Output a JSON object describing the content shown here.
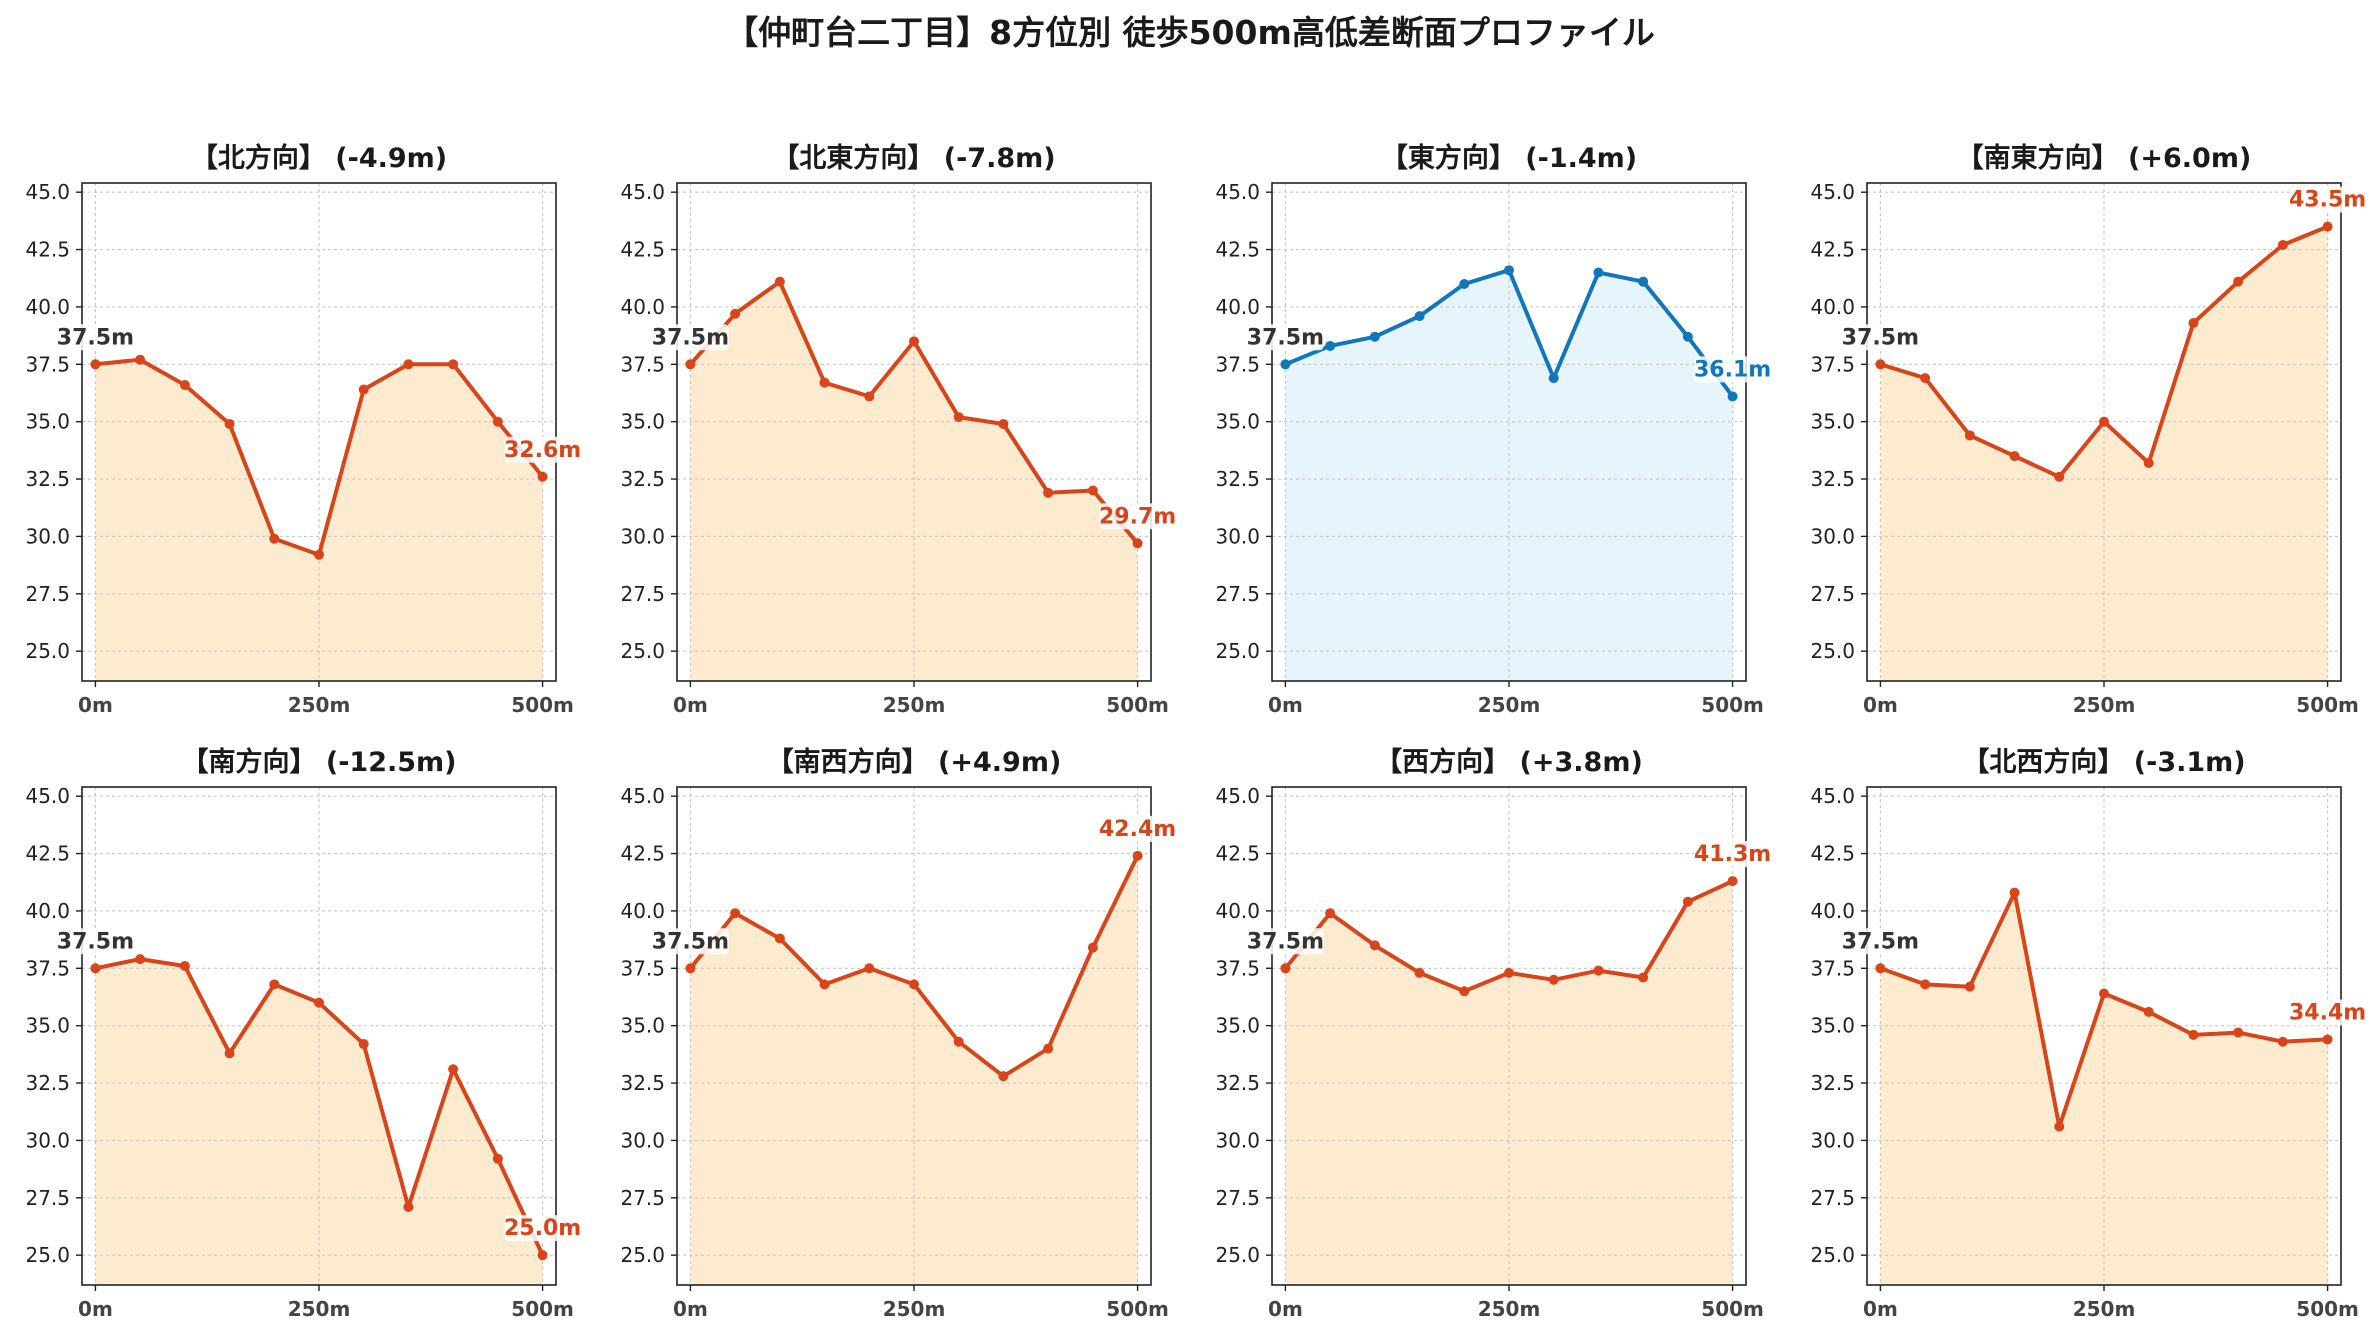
{
  "figure": {
    "title": "【仲町台二丁目】8方位別 徒歩500m高低差断面プロファイル"
  },
  "colors": {
    "down_line": "#d9451a",
    "down_fill": "#fdebd0",
    "flat_line": "#1177bb",
    "flat_fill": "#e6f4fb",
    "start_label": "#333333",
    "grid": "#c8c8c8"
  },
  "chart_data": [
    {
      "type": "area",
      "title": "【北方向】 (-4.9m)",
      "x": [
        0,
        50,
        100,
        150,
        200,
        250,
        300,
        350,
        400,
        450,
        500
      ],
      "y": [
        37.5,
        37.7,
        36.6,
        34.9,
        29.9,
        29.2,
        36.4,
        37.5,
        37.5,
        35.0,
        32.6
      ],
      "xticks": [
        "0m",
        "250m",
        "500m"
      ],
      "yticks": [
        "25.0",
        "27.5",
        "30.0",
        "32.5",
        "35.0",
        "37.5",
        "40.0",
        "42.5",
        "45.0"
      ],
      "start_label": "37.5m",
      "end_label": "32.6m",
      "color_scheme": "orange",
      "xlim": [
        -15,
        515
      ],
      "ylim": [
        23.7,
        45.4
      ],
      "grid": true
    },
    {
      "type": "area",
      "title": "【北東方向】 (-7.8m)",
      "x": [
        0,
        50,
        100,
        150,
        200,
        250,
        300,
        350,
        400,
        450,
        500
      ],
      "y": [
        37.5,
        39.7,
        41.1,
        36.7,
        36.1,
        38.5,
        35.2,
        34.9,
        31.9,
        32.0,
        29.7
      ],
      "xticks": [
        "0m",
        "250m",
        "500m"
      ],
      "yticks": [
        "25.0",
        "27.5",
        "30.0",
        "32.5",
        "35.0",
        "37.5",
        "40.0",
        "42.5",
        "45.0"
      ],
      "start_label": "37.5m",
      "end_label": "29.7m",
      "color_scheme": "orange",
      "xlim": [
        -15,
        515
      ],
      "ylim": [
        23.7,
        45.4
      ],
      "grid": true
    },
    {
      "type": "area",
      "title": "【東方向】 (-1.4m)",
      "x": [
        0,
        50,
        100,
        150,
        200,
        250,
        300,
        350,
        400,
        450,
        500
      ],
      "y": [
        37.5,
        38.3,
        38.7,
        39.6,
        41.0,
        41.6,
        36.9,
        41.5,
        41.1,
        38.7,
        36.1
      ],
      "xticks": [
        "0m",
        "250m",
        "500m"
      ],
      "yticks": [
        "25.0",
        "27.5",
        "30.0",
        "32.5",
        "35.0",
        "37.5",
        "40.0",
        "42.5",
        "45.0"
      ],
      "start_label": "37.5m",
      "end_label": "36.1m",
      "color_scheme": "blue",
      "xlim": [
        -15,
        515
      ],
      "ylim": [
        23.7,
        45.4
      ],
      "grid": true
    },
    {
      "type": "area",
      "title": "【南東方向】 (+6.0m)",
      "x": [
        0,
        50,
        100,
        150,
        200,
        250,
        300,
        350,
        400,
        450,
        500
      ],
      "y": [
        37.5,
        36.9,
        34.4,
        33.5,
        32.6,
        35.0,
        33.2,
        39.3,
        41.1,
        42.7,
        43.5
      ],
      "xticks": [
        "0m",
        "250m",
        "500m"
      ],
      "yticks": [
        "25.0",
        "27.5",
        "30.0",
        "32.5",
        "35.0",
        "37.5",
        "40.0",
        "42.5",
        "45.0"
      ],
      "start_label": "37.5m",
      "end_label": "43.5m",
      "color_scheme": "orange",
      "xlim": [
        -15,
        515
      ],
      "ylim": [
        23.7,
        45.4
      ],
      "grid": true
    },
    {
      "type": "area",
      "title": "【南方向】 (-12.5m)",
      "x": [
        0,
        50,
        100,
        150,
        200,
        250,
        300,
        350,
        400,
        450,
        500
      ],
      "y": [
        37.5,
        37.9,
        37.6,
        33.8,
        36.8,
        36.0,
        34.2,
        27.1,
        33.1,
        29.2,
        25.0
      ],
      "xticks": [
        "0m",
        "250m",
        "500m"
      ],
      "yticks": [
        "25.0",
        "27.5",
        "30.0",
        "32.5",
        "35.0",
        "37.5",
        "40.0",
        "42.5",
        "45.0"
      ],
      "start_label": "37.5m",
      "end_label": "25.0m",
      "color_scheme": "orange",
      "xlim": [
        -15,
        515
      ],
      "ylim": [
        23.7,
        45.4
      ],
      "grid": true
    },
    {
      "type": "area",
      "title": "【南西方向】 (+4.9m)",
      "x": [
        0,
        50,
        100,
        150,
        200,
        250,
        300,
        350,
        400,
        450,
        500
      ],
      "y": [
        37.5,
        39.9,
        38.8,
        36.8,
        37.5,
        36.8,
        34.3,
        32.8,
        34.0,
        38.4,
        42.4
      ],
      "xticks": [
        "0m",
        "250m",
        "500m"
      ],
      "yticks": [
        "25.0",
        "27.5",
        "30.0",
        "32.5",
        "35.0",
        "37.5",
        "40.0",
        "42.5",
        "45.0"
      ],
      "start_label": "37.5m",
      "end_label": "42.4m",
      "color_scheme": "orange",
      "xlim": [
        -15,
        515
      ],
      "ylim": [
        23.7,
        45.4
      ],
      "grid": true
    },
    {
      "type": "area",
      "title": "【西方向】 (+3.8m)",
      "x": [
        0,
        50,
        100,
        150,
        200,
        250,
        300,
        350,
        400,
        450,
        500
      ],
      "y": [
        37.5,
        39.9,
        38.5,
        37.3,
        36.5,
        37.3,
        37.0,
        37.4,
        37.1,
        40.4,
        41.3
      ],
      "xticks": [
        "0m",
        "250m",
        "500m"
      ],
      "yticks": [
        "25.0",
        "27.5",
        "30.0",
        "32.5",
        "35.0",
        "37.5",
        "40.0",
        "42.5",
        "45.0"
      ],
      "start_label": "37.5m",
      "end_label": "41.3m",
      "color_scheme": "orange",
      "xlim": [
        -15,
        515
      ],
      "ylim": [
        23.7,
        45.4
      ],
      "grid": true
    },
    {
      "type": "area",
      "title": "【北西方向】 (-3.1m)",
      "x": [
        0,
        50,
        100,
        150,
        200,
        250,
        300,
        350,
        400,
        450,
        500
      ],
      "y": [
        37.5,
        36.8,
        36.7,
        40.8,
        30.6,
        36.4,
        35.6,
        34.6,
        34.7,
        34.3,
        34.4
      ],
      "xticks": [
        "0m",
        "250m",
        "500m"
      ],
      "yticks": [
        "25.0",
        "27.5",
        "30.0",
        "32.5",
        "35.0",
        "37.5",
        "40.0",
        "42.5",
        "45.0"
      ],
      "start_label": "37.5m",
      "end_label": "34.4m",
      "color_scheme": "orange",
      "xlim": [
        -15,
        515
      ],
      "ylim": [
        23.7,
        45.4
      ],
      "grid": true
    }
  ]
}
